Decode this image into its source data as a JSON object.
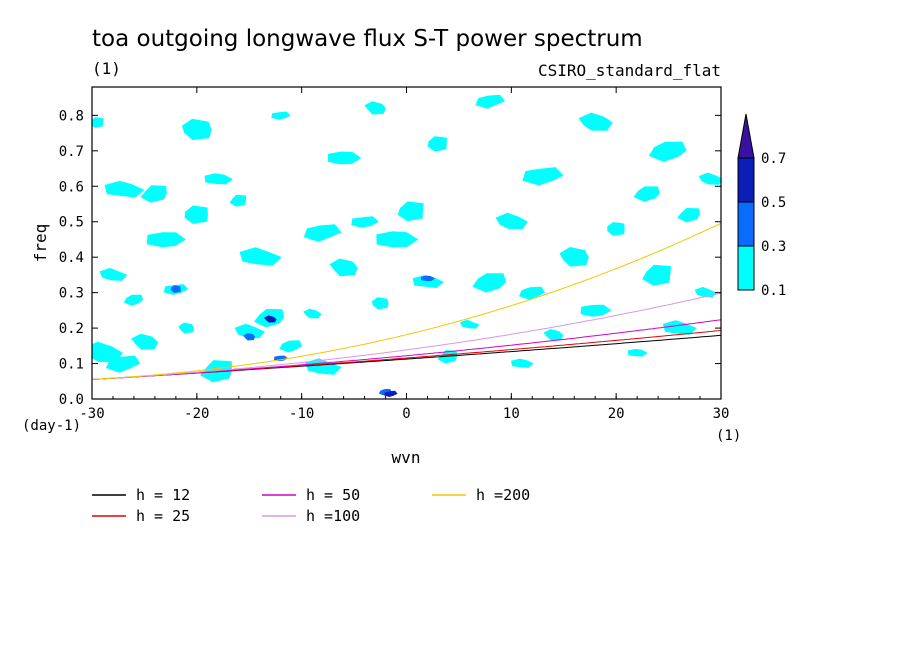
{
  "chart_data": {
    "type": "heatmap",
    "title": "toa outgoing longwave flux S-T power spectrum",
    "subtitle_left": "(1)",
    "subtitle_right": "CSIRO_standard_flat",
    "xlabel": "wvn",
    "ylabel": "freq",
    "x_unit": "(1)",
    "y_unit": "(day-1)",
    "xlim": [
      -30,
      30
    ],
    "ylim": [
      0,
      0.88
    ],
    "xticks": [
      -30,
      -20,
      -10,
      0,
      10,
      20,
      30
    ],
    "yticks": [
      0.0,
      0.1,
      0.2,
      0.3,
      0.4,
      0.5,
      0.6,
      0.7,
      0.8
    ],
    "ytick_labels": [
      "0.0",
      "0.1",
      "0.2",
      "0.3",
      "0.4",
      "0.5",
      "0.6",
      "0.7",
      "0.8"
    ],
    "grid": false,
    "colorbar": {
      "levels": [
        "0.1",
        "0.3",
        "0.5",
        "0.7"
      ],
      "colors": [
        "#00ffff",
        "#0a6cff",
        "#0a1fb8",
        "#3a10a0"
      ]
    },
    "blobs": [
      {
        "x": -29.5,
        "y": 0.78,
        "lvl": 0
      },
      {
        "x": -27,
        "y": 0.59,
        "lvl": 0
      },
      {
        "x": -24,
        "y": 0.58,
        "lvl": 0
      },
      {
        "x": -28,
        "y": 0.35,
        "lvl": 0
      },
      {
        "x": -26,
        "y": 0.28,
        "lvl": 0
      },
      {
        "x": -29,
        "y": 0.13,
        "lvl": 0
      },
      {
        "x": -27,
        "y": 0.1,
        "lvl": 0
      },
      {
        "x": -25,
        "y": 0.16,
        "lvl": 0
      },
      {
        "x": -22,
        "y": 0.31,
        "lvl": 0
      },
      {
        "x": -21,
        "y": 0.2,
        "lvl": 0
      },
      {
        "x": -23,
        "y": 0.45,
        "lvl": 0
      },
      {
        "x": -20,
        "y": 0.52,
        "lvl": 0
      },
      {
        "x": -18,
        "y": 0.62,
        "lvl": 0
      },
      {
        "x": -16,
        "y": 0.56,
        "lvl": 0
      },
      {
        "x": -14,
        "y": 0.4,
        "lvl": 0
      },
      {
        "x": -13,
        "y": 0.23,
        "lvl": 0
      },
      {
        "x": -15,
        "y": 0.19,
        "lvl": 0
      },
      {
        "x": -11,
        "y": 0.15,
        "lvl": 0
      },
      {
        "x": -9,
        "y": 0.24,
        "lvl": 0
      },
      {
        "x": -8,
        "y": 0.47,
        "lvl": 0
      },
      {
        "x": -6,
        "y": 0.37,
        "lvl": 0
      },
      {
        "x": -4,
        "y": 0.5,
        "lvl": 0
      },
      {
        "x": -2.5,
        "y": 0.27,
        "lvl": 0
      },
      {
        "x": -1,
        "y": 0.45,
        "lvl": 0
      },
      {
        "x": 0.5,
        "y": 0.53,
        "lvl": 0
      },
      {
        "x": 2,
        "y": 0.33,
        "lvl": 0
      },
      {
        "x": 4,
        "y": 0.12,
        "lvl": 0
      },
      {
        "x": 6,
        "y": 0.21,
        "lvl": 0
      },
      {
        "x": 8,
        "y": 0.33,
        "lvl": 0
      },
      {
        "x": 10,
        "y": 0.5,
        "lvl": 0
      },
      {
        "x": 12,
        "y": 0.3,
        "lvl": 0
      },
      {
        "x": 14,
        "y": 0.18,
        "lvl": 0
      },
      {
        "x": 13,
        "y": 0.63,
        "lvl": 0
      },
      {
        "x": 16,
        "y": 0.4,
        "lvl": 0
      },
      {
        "x": 18,
        "y": 0.25,
        "lvl": 0
      },
      {
        "x": 20,
        "y": 0.48,
        "lvl": 0
      },
      {
        "x": 22,
        "y": 0.13,
        "lvl": 0
      },
      {
        "x": 24,
        "y": 0.35,
        "lvl": 0
      },
      {
        "x": 26,
        "y": 0.2,
        "lvl": 0
      },
      {
        "x": 27,
        "y": 0.52,
        "lvl": 0
      },
      {
        "x": 28.5,
        "y": 0.3,
        "lvl": 0
      },
      {
        "x": 25,
        "y": 0.7,
        "lvl": 0
      },
      {
        "x": 18,
        "y": 0.78,
        "lvl": 0
      },
      {
        "x": 8,
        "y": 0.84,
        "lvl": 0
      },
      {
        "x": -3,
        "y": 0.82,
        "lvl": 0
      },
      {
        "x": -12,
        "y": 0.8,
        "lvl": 0
      },
      {
        "x": -20,
        "y": 0.76,
        "lvl": 0
      },
      {
        "x": -6,
        "y": 0.68,
        "lvl": 0
      },
      {
        "x": 3,
        "y": 0.72,
        "lvl": 0
      },
      {
        "x": 11,
        "y": 0.1,
        "lvl": 0
      },
      {
        "x": -18,
        "y": 0.08,
        "lvl": 0
      },
      {
        "x": -8,
        "y": 0.09,
        "lvl": 0
      },
      {
        "x": 23,
        "y": 0.58,
        "lvl": 0
      },
      {
        "x": 29,
        "y": 0.62,
        "lvl": 0
      },
      {
        "x": -2,
        "y": 0.02,
        "lvl": 1
      },
      {
        "x": -13,
        "y": 0.225,
        "lvl": 2
      },
      {
        "x": -1.5,
        "y": 0.015,
        "lvl": 2
      },
      {
        "x": -15,
        "y": 0.175,
        "lvl": 1
      },
      {
        "x": -12,
        "y": 0.115,
        "lvl": 1
      },
      {
        "x": -22,
        "y": 0.31,
        "lvl": 1
      },
      {
        "x": 2,
        "y": 0.34,
        "lvl": 1
      }
    ],
    "series": [
      {
        "name": "h = 12",
        "h": 12,
        "color": "#000000"
      },
      {
        "name": "h = 25",
        "h": 25,
        "color": "#e00000"
      },
      {
        "name": "h = 50",
        "h": 50,
        "color": "#d400c8"
      },
      {
        "name": "h =100",
        "h": 100,
        "color": "#d898e6"
      },
      {
        "name": "h =200",
        "h": 200,
        "color": "#f0c800"
      }
    ]
  }
}
